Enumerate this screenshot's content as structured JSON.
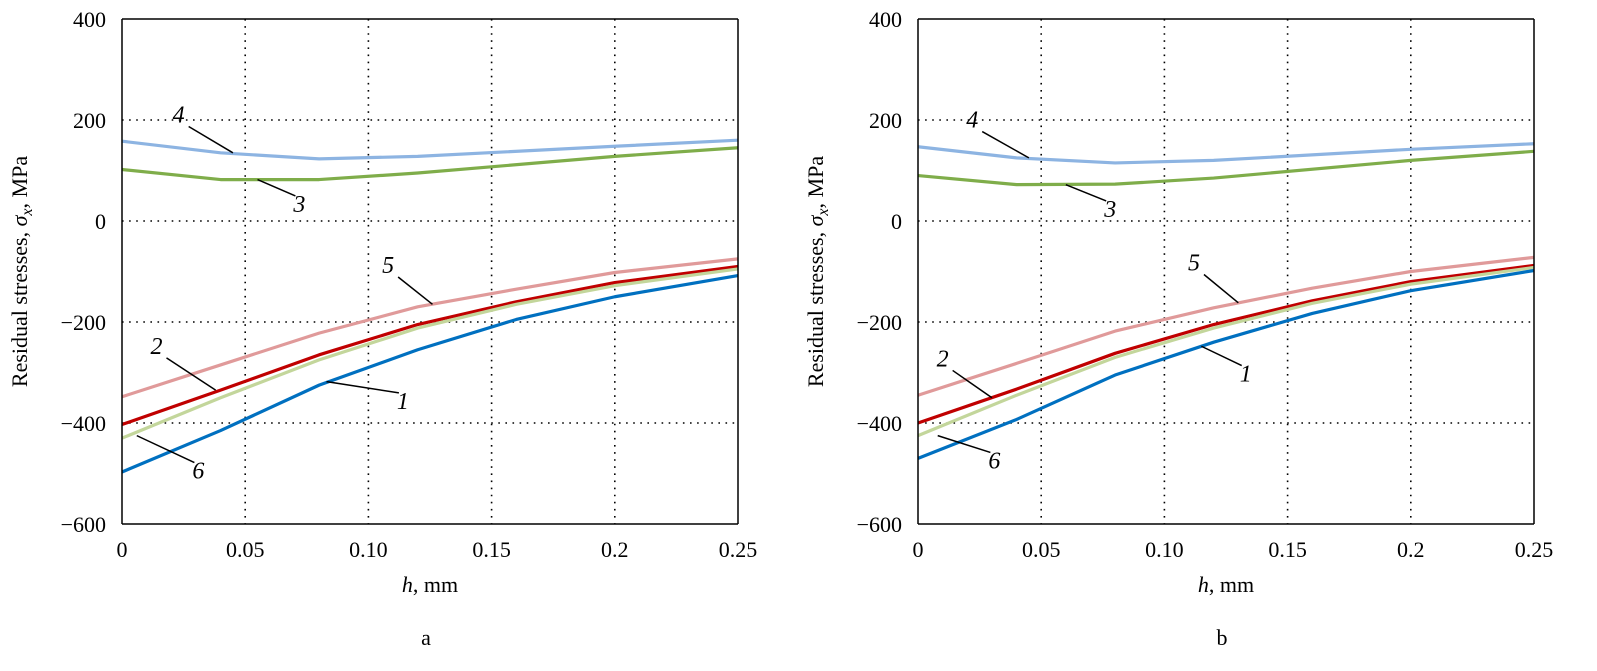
{
  "chart_data": [
    {
      "type": "line",
      "panel_label": "a",
      "xlabel_var": "h",
      "xlabel_unit": ", mm",
      "ylabel_text": "Residual stresses, ",
      "ylabel_sym": "σ",
      "ylabel_sub": "x",
      "ylabel_unit": ", MPa",
      "xlim": [
        0,
        0.25
      ],
      "ylim": [
        -600,
        400
      ],
      "xticks": [
        0,
        0.05,
        0.1,
        0.15,
        0.2,
        0.25
      ],
      "xtick_labels": [
        "0",
        "0.05",
        "0.10",
        "0.15",
        "0.2",
        "0.25"
      ],
      "yticks": [
        -600,
        -400,
        -200,
        0,
        200,
        400
      ],
      "ytick_labels": [
        "−600",
        "−400",
        "−200",
        "0",
        "200",
        "400"
      ],
      "grid": true,
      "series": [
        {
          "name": "4",
          "color": "#8db4e2",
          "x": [
            0,
            0.04,
            0.08,
            0.12,
            0.2,
            0.25
          ],
          "y": [
            158,
            135,
            123,
            128,
            148,
            160
          ],
          "label_at": [
            0.023,
            195
          ],
          "leader_to": [
            0.045,
            135
          ]
        },
        {
          "name": "3",
          "color": "#7fad4a",
          "x": [
            0,
            0.04,
            0.08,
            0.12,
            0.2,
            0.25
          ],
          "y": [
            102,
            82,
            82,
            95,
            128,
            145
          ],
          "label_at": [
            0.072,
            18
          ],
          "leader_to": [
            0.055,
            82
          ]
        },
        {
          "name": "5",
          "color": "#e09a9a",
          "x": [
            0,
            0.04,
            0.08,
            0.12,
            0.16,
            0.2,
            0.25
          ],
          "y": [
            -348,
            -285,
            -222,
            -170,
            -135,
            -102,
            -75
          ],
          "label_at": [
            0.108,
            -103
          ],
          "leader_to": [
            0.126,
            -165
          ]
        },
        {
          "name": "2",
          "color": "#c00000",
          "x": [
            0,
            0.04,
            0.08,
            0.12,
            0.16,
            0.2,
            0.25
          ],
          "y": [
            -403,
            -335,
            -265,
            -205,
            -160,
            -122,
            -90
          ],
          "label_at": [
            0.014,
            -263
          ],
          "leader_to": [
            0.038,
            -335
          ]
        },
        {
          "name": "6",
          "color": "#c3d69b",
          "x": [
            0,
            0.04,
            0.08,
            0.12,
            0.16,
            0.2,
            0.25
          ],
          "y": [
            -430,
            -350,
            -275,
            -212,
            -165,
            -128,
            -95
          ],
          "label_at": [
            0.031,
            -510
          ],
          "leader_to": [
            0.006,
            -425
          ]
        },
        {
          "name": "1",
          "color": "#0070c0",
          "x": [
            0,
            0.04,
            0.08,
            0.12,
            0.16,
            0.2,
            0.25
          ],
          "y": [
            -497,
            -415,
            -325,
            -255,
            -195,
            -150,
            -108
          ],
          "label_at": [
            0.114,
            -372
          ],
          "leader_to": [
            0.083,
            -318
          ]
        }
      ]
    },
    {
      "type": "line",
      "panel_label": "b",
      "xlabel_var": "h",
      "xlabel_unit": ", mm",
      "ylabel_text": "Residual stresses, ",
      "ylabel_sym": "σ",
      "ylabel_sub": "x",
      "ylabel_unit": ", MPa",
      "xlim": [
        0,
        0.25
      ],
      "ylim": [
        -600,
        400
      ],
      "xticks": [
        0,
        0.05,
        0.1,
        0.15,
        0.2,
        0.25
      ],
      "xtick_labels": [
        "0",
        "0.05",
        "0.10",
        "0.15",
        "0.2",
        "0.25"
      ],
      "yticks": [
        -600,
        -400,
        -200,
        0,
        200,
        400
      ],
      "ytick_labels": [
        "−600",
        "−400",
        "−200",
        "0",
        "200",
        "400"
      ],
      "grid": true,
      "series": [
        {
          "name": "4",
          "color": "#8db4e2",
          "x": [
            0,
            0.04,
            0.08,
            0.12,
            0.2,
            0.25
          ],
          "y": [
            147,
            125,
            115,
            120,
            142,
            153
          ],
          "label_at": [
            0.022,
            185
          ],
          "leader_to": [
            0.045,
            125
          ]
        },
        {
          "name": "3",
          "color": "#7fad4a",
          "x": [
            0,
            0.04,
            0.08,
            0.12,
            0.2,
            0.25
          ],
          "y": [
            90,
            72,
            73,
            85,
            120,
            138
          ],
          "label_at": [
            0.078,
            8
          ],
          "leader_to": [
            0.06,
            72
          ]
        },
        {
          "name": "5",
          "color": "#e09a9a",
          "x": [
            0,
            0.04,
            0.08,
            0.12,
            0.16,
            0.2,
            0.25
          ],
          "y": [
            -345,
            -282,
            -218,
            -172,
            -133,
            -100,
            -72
          ],
          "label_at": [
            0.112,
            -98
          ],
          "leader_to": [
            0.13,
            -162
          ]
        },
        {
          "name": "2",
          "color": "#c00000",
          "x": [
            0,
            0.04,
            0.08,
            0.12,
            0.16,
            0.2,
            0.25
          ],
          "y": [
            -400,
            -333,
            -262,
            -205,
            -158,
            -120,
            -88
          ],
          "label_at": [
            0.01,
            -288
          ],
          "leader_to": [
            0.03,
            -350
          ]
        },
        {
          "name": "6",
          "color": "#c3d69b",
          "x": [
            0,
            0.04,
            0.08,
            0.12,
            0.16,
            0.2,
            0.25
          ],
          "y": [
            -425,
            -345,
            -270,
            -212,
            -163,
            -125,
            -92
          ],
          "label_at": [
            0.031,
            -490
          ],
          "leader_to": [
            0.008,
            -425
          ]
        },
        {
          "name": "1",
          "color": "#0070c0",
          "x": [
            0,
            0.04,
            0.08,
            0.12,
            0.16,
            0.2,
            0.25
          ],
          "y": [
            -470,
            -393,
            -305,
            -240,
            -183,
            -138,
            -98
          ],
          "label_at": [
            0.133,
            -318
          ],
          "leader_to": [
            0.115,
            -248
          ]
        }
      ]
    }
  ]
}
